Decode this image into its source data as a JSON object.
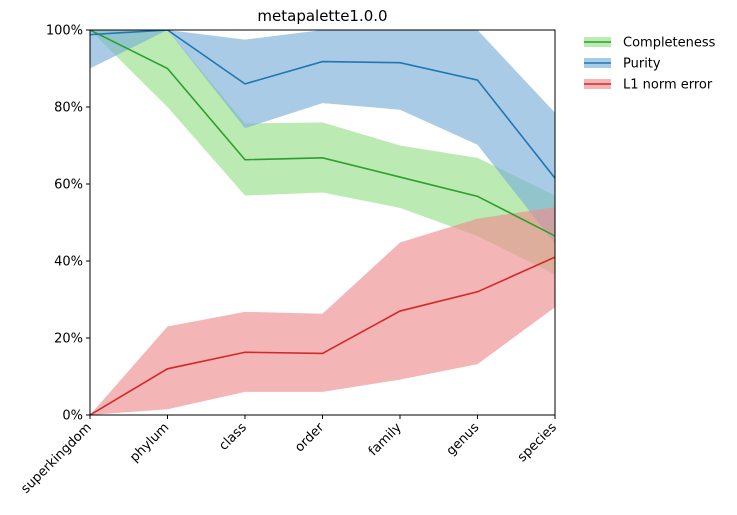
{
  "chart_data": {
    "type": "line",
    "title": "metapalette1.0.0",
    "xlabel": "",
    "ylabel": "",
    "categories": [
      "superkingdom",
      "phylum",
      "class",
      "order",
      "family",
      "genus",
      "species"
    ],
    "ylim": [
      0,
      100
    ],
    "yticks": [
      "0%",
      "20%",
      "40%",
      "60%",
      "80%",
      "100%"
    ],
    "legend_position": "outside-top-right",
    "grid": false,
    "series": [
      {
        "name": "Completeness",
        "color": "#2ca02c",
        "band_color": "#98df8a",
        "values": [
          100,
          90,
          66.3,
          66.8,
          61.8,
          56.8,
          46.5
        ],
        "lower": [
          100,
          80,
          57,
          57.8,
          53.8,
          46.5,
          36.5
        ],
        "upper": [
          100,
          100,
          75.7,
          76,
          70,
          66.8,
          57
        ]
      },
      {
        "name": "Purity",
        "color": "#1f77b4",
        "band_color": "#7bafd9",
        "values": [
          98.8,
          100,
          86,
          91.8,
          91.5,
          87,
          61.5
        ],
        "lower": [
          90,
          100,
          74.5,
          81,
          79.3,
          70.2,
          44.5
        ],
        "upper": [
          100,
          100,
          97.5,
          100,
          100,
          100,
          78.5
        ]
      },
      {
        "name": "L1 norm error",
        "color": "#d62728",
        "band_color": "#ec8d8f",
        "values": [
          0,
          12,
          16.3,
          16,
          27,
          32,
          41
        ],
        "lower": [
          0,
          1.5,
          6,
          6,
          9.2,
          13.2,
          28
        ],
        "upper": [
          0,
          23,
          26.8,
          26.3,
          44.8,
          51,
          54
        ]
      }
    ]
  }
}
